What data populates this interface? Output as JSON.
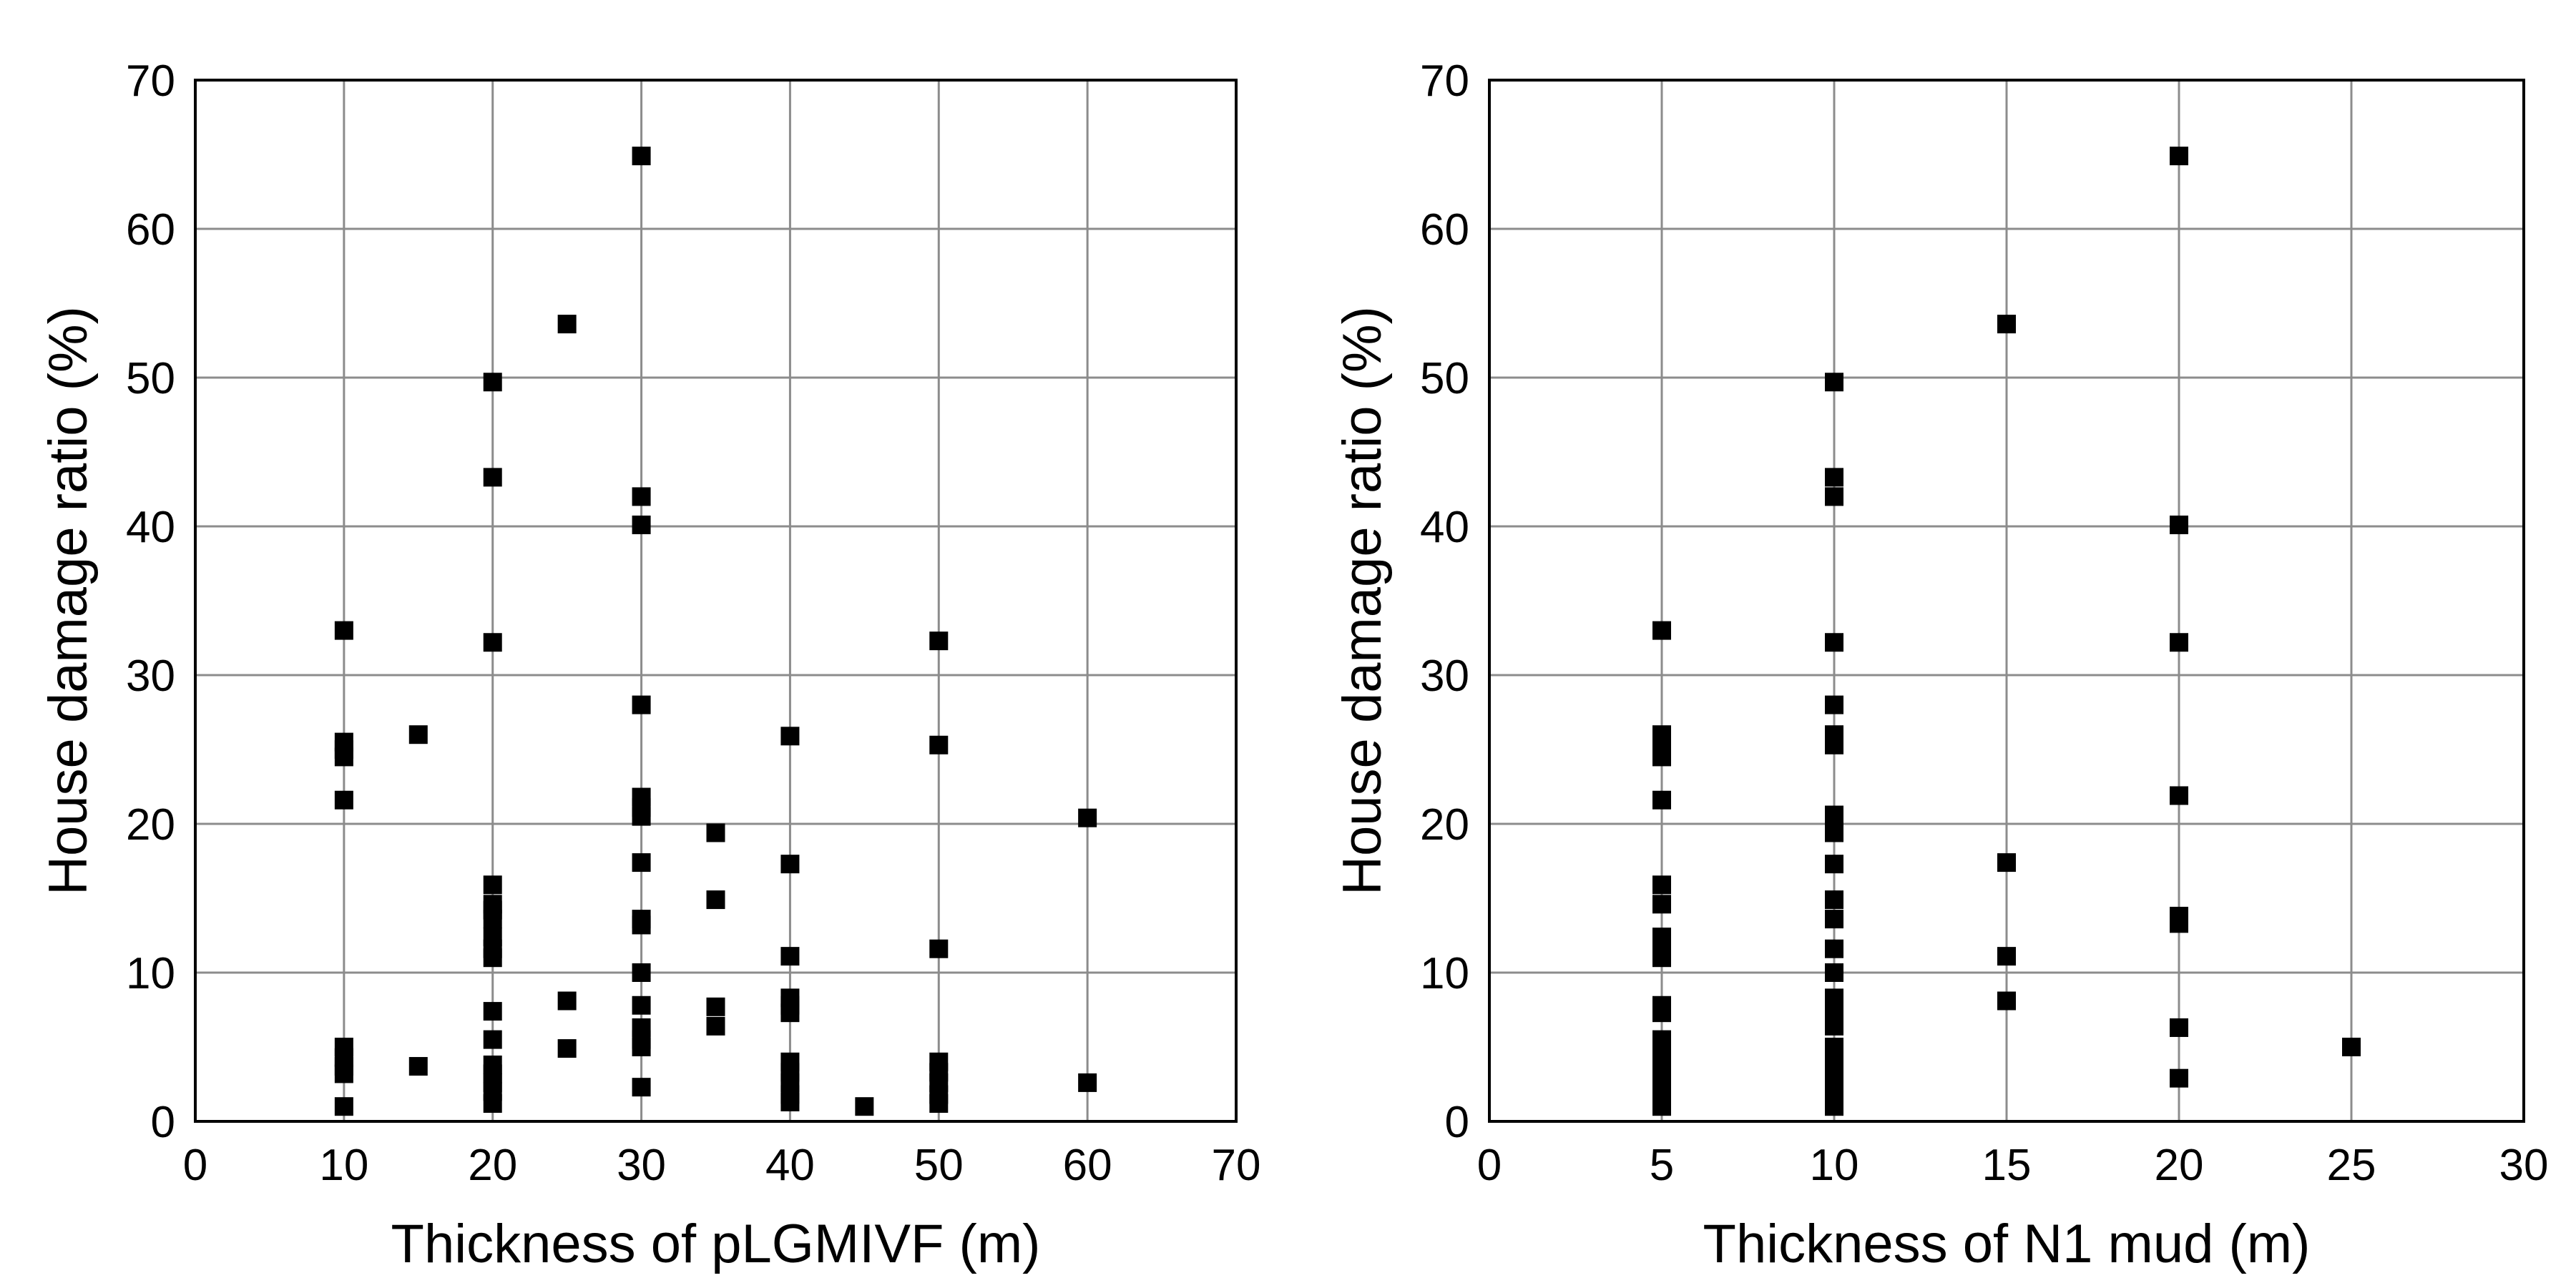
{
  "chart_data": [
    {
      "type": "scatter",
      "title": "",
      "xlabel": "Thickness of pLGMIVF (m)",
      "ylabel": "House damage ratio (%)",
      "xlim": [
        0,
        70
      ],
      "ylim": [
        0,
        70
      ],
      "xticks": [
        0,
        10,
        20,
        30,
        40,
        50,
        60,
        70
      ],
      "yticks": [
        0,
        10,
        20,
        30,
        40,
        50,
        60,
        70
      ],
      "grid": true,
      "marker": "square",
      "marker_color": "#000000",
      "series": [
        {
          "name": "",
          "points": [
            [
              10,
              33
            ],
            [
              10,
              25.5
            ],
            [
              10,
              25
            ],
            [
              10,
              24.5
            ],
            [
              10,
              21.6
            ],
            [
              10,
              5
            ],
            [
              10,
              4.3
            ],
            [
              10,
              3.7
            ],
            [
              10,
              3.2
            ],
            [
              10,
              1
            ],
            [
              15,
              26
            ],
            [
              15,
              3.7
            ],
            [
              20,
              49.7
            ],
            [
              20,
              43.3
            ],
            [
              20,
              32.2
            ],
            [
              20,
              15.9
            ],
            [
              20,
              14.6
            ],
            [
              20,
              14.2
            ],
            [
              20,
              13.6
            ],
            [
              20,
              12.4
            ],
            [
              20,
              11.6
            ],
            [
              20,
              11
            ],
            [
              20,
              7.4
            ],
            [
              20,
              5.5
            ],
            [
              20,
              3.8
            ],
            [
              20,
              3.2
            ],
            [
              20,
              2.6
            ],
            [
              20,
              2
            ],
            [
              20,
              1.2
            ],
            [
              25,
              53.6
            ],
            [
              25,
              8.1
            ],
            [
              25,
              4.9
            ],
            [
              30,
              64.9
            ],
            [
              30,
              42
            ],
            [
              30,
              40.1
            ],
            [
              30,
              28
            ],
            [
              30,
              21.8
            ],
            [
              30,
              21.1
            ],
            [
              30,
              20.5
            ],
            [
              30,
              17.4
            ],
            [
              30,
              13.6
            ],
            [
              30,
              13.2
            ],
            [
              30,
              10
            ],
            [
              30,
              7.8
            ],
            [
              30,
              6.3
            ],
            [
              30,
              5.5
            ],
            [
              30,
              5
            ],
            [
              30,
              2.3
            ],
            [
              35,
              19.4
            ],
            [
              35,
              14.9
            ],
            [
              35,
              7.7
            ],
            [
              35,
              6.4
            ],
            [
              40,
              25.9
            ],
            [
              40,
              17.3
            ],
            [
              40,
              11.1
            ],
            [
              40,
              8.3
            ],
            [
              40,
              7.8
            ],
            [
              40,
              7.3
            ],
            [
              40,
              4
            ],
            [
              40,
              3.3
            ],
            [
              40,
              2.6
            ],
            [
              40,
              1.8
            ],
            [
              40,
              1.3
            ],
            [
              45,
              1
            ],
            [
              50,
              32.3
            ],
            [
              50,
              25.3
            ],
            [
              50,
              11.6
            ],
            [
              50,
              4
            ],
            [
              50,
              3.3
            ],
            [
              50,
              2.6
            ],
            [
              50,
              1.8
            ],
            [
              50,
              1.2
            ],
            [
              60,
              20.4
            ],
            [
              60,
              2.6
            ]
          ]
        }
      ]
    },
    {
      "type": "scatter",
      "title": "",
      "xlabel": "Thickness of N1 mud (m)",
      "ylabel": "House damage ratio (%)",
      "xlim": [
        0,
        30
      ],
      "ylim": [
        0,
        70
      ],
      "xticks": [
        0,
        5,
        10,
        15,
        20,
        25,
        30
      ],
      "yticks": [
        0,
        10,
        20,
        30,
        40,
        50,
        60,
        70
      ],
      "grid": true,
      "marker": "square",
      "marker_color": "#000000",
      "series": [
        {
          "name": "",
          "points": [
            [
              5,
              33
            ],
            [
              5,
              26
            ],
            [
              5,
              25.5
            ],
            [
              5,
              25
            ],
            [
              5,
              24.5
            ],
            [
              5,
              21.6
            ],
            [
              5,
              15.9
            ],
            [
              5,
              14.6
            ],
            [
              5,
              12.4
            ],
            [
              5,
              11.8
            ],
            [
              5,
              11
            ],
            [
              5,
              7.8
            ],
            [
              5,
              7.3
            ],
            [
              5,
              5.5
            ],
            [
              5,
              5
            ],
            [
              5,
              4.3
            ],
            [
              5,
              3.7
            ],
            [
              5,
              3.2
            ],
            [
              5,
              2.6
            ],
            [
              5,
              2
            ],
            [
              5,
              1.3
            ],
            [
              5,
              1
            ],
            [
              10,
              49.7
            ],
            [
              10,
              43.3
            ],
            [
              10,
              42
            ],
            [
              10,
              32.2
            ],
            [
              10,
              28
            ],
            [
              10,
              26
            ],
            [
              10,
              25.3
            ],
            [
              10,
              20.6
            ],
            [
              10,
              20
            ],
            [
              10,
              19.4
            ],
            [
              10,
              17.3
            ],
            [
              10,
              14.9
            ],
            [
              10,
              13.6
            ],
            [
              10,
              11.6
            ],
            [
              10,
              10
            ],
            [
              10,
              8.3
            ],
            [
              10,
              7.7
            ],
            [
              10,
              7.3
            ],
            [
              10,
              6.4
            ],
            [
              10,
              5
            ],
            [
              10,
              4.3
            ],
            [
              10,
              3.7
            ],
            [
              10,
              3.2
            ],
            [
              10,
              2.6
            ],
            [
              10,
              2
            ],
            [
              10,
              1.3
            ],
            [
              10,
              1
            ],
            [
              15,
              53.6
            ],
            [
              15,
              17.4
            ],
            [
              15,
              11.1
            ],
            [
              15,
              8.1
            ],
            [
              20,
              64.9
            ],
            [
              20,
              40.1
            ],
            [
              20,
              32.2
            ],
            [
              20,
              21.9
            ],
            [
              20,
              13.8
            ],
            [
              20,
              13.3
            ],
            [
              20,
              6.3
            ],
            [
              20,
              2.9
            ],
            [
              25,
              5
            ]
          ]
        }
      ]
    }
  ]
}
